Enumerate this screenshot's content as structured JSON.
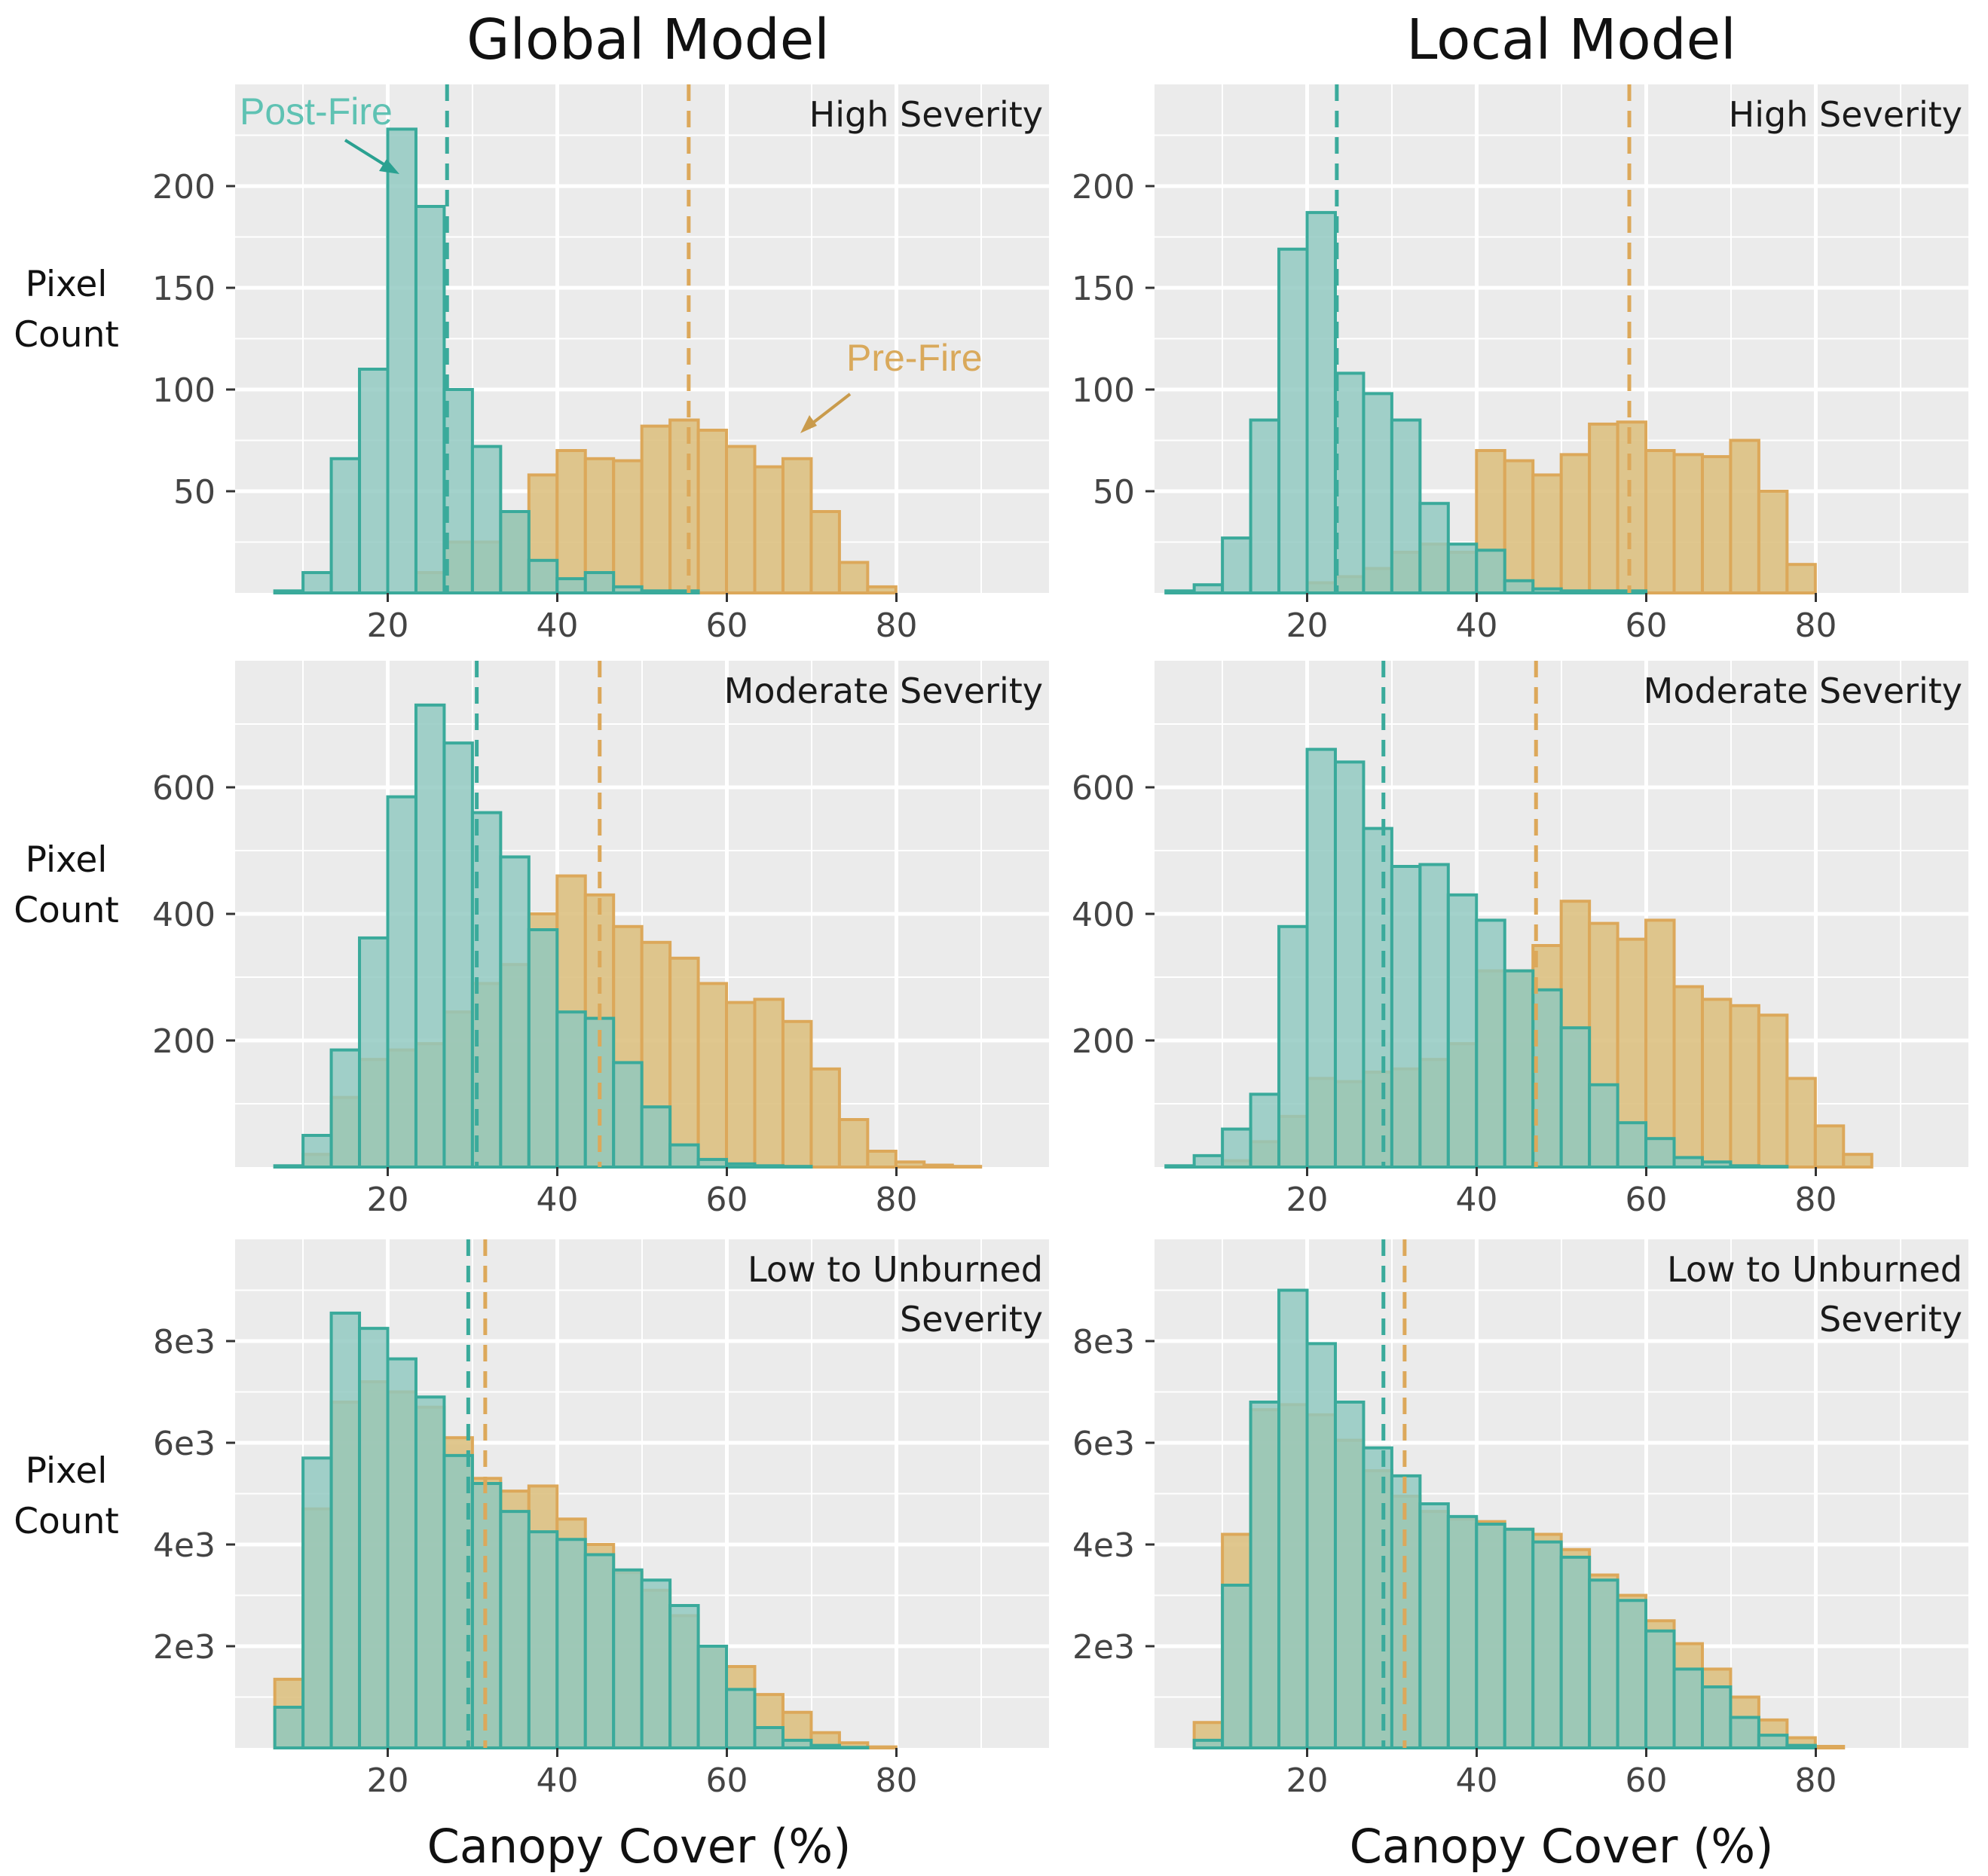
{
  "columns": [
    "Global Model",
    "Local Model"
  ],
  "y_axis_label_lines": [
    "Pixel",
    "Count"
  ],
  "x_axis_label": "Canopy Cover (%)",
  "colors": {
    "post_fire_fill": "#8fc8c0",
    "post_fire_line": "#3aaa9b",
    "pre_fire_fill": "#dcbf7e",
    "pre_fire_line": "#dca85a",
    "panel_bg": "#ebebeb",
    "grid": "#ffffff"
  },
  "annotations": {
    "post_fire": "Post-Fire",
    "pre_fire": "Pre-Fire"
  },
  "chart_data": [
    {
      "type": "histogram",
      "model": "Global Model",
      "panel_title": [
        "High Severity"
      ],
      "xlabel": "Canopy Cover (%)",
      "ylabel": "Pixel Count",
      "x_range": [
        2,
        98
      ],
      "ylim": [
        0,
        250
      ],
      "x_ticks": [
        20,
        40,
        60,
        80
      ],
      "y_ticks": [
        50,
        100,
        150,
        200
      ],
      "y_tick_labels": [
        "50",
        "100",
        "150",
        "200"
      ],
      "bin_width": 3.33,
      "bin_start": 3.35,
      "series": [
        {
          "name": "Post-Fire",
          "mean": 27,
          "values": [
            0,
            1,
            10,
            66,
            110,
            228,
            190,
            100,
            72,
            40,
            16,
            7,
            10,
            3,
            1,
            1,
            0,
            0,
            0,
            0,
            0,
            0,
            0,
            0,
            0,
            0,
            0,
            0
          ]
        },
        {
          "name": "Pre-Fire",
          "mean": 55.5,
          "values": [
            0,
            0,
            0,
            0,
            0,
            0,
            10,
            25,
            25,
            40,
            58,
            70,
            66,
            65,
            82,
            85,
            80,
            72,
            62,
            66,
            40,
            15,
            3,
            0,
            0,
            0,
            0,
            0
          ]
        }
      ]
    },
    {
      "type": "histogram",
      "model": "Local Model",
      "panel_title": [
        "High Severity"
      ],
      "xlabel": "Canopy Cover (%)",
      "ylabel": "Pixel Count",
      "x_range": [
        2,
        98
      ],
      "ylim": [
        0,
        250
      ],
      "x_ticks": [
        20,
        40,
        60,
        80
      ],
      "y_ticks": [
        50,
        100,
        150,
        200
      ],
      "y_tick_labels": [
        "50",
        "100",
        "150",
        "200"
      ],
      "bin_width": 3.33,
      "bin_start": 3.35,
      "series": [
        {
          "name": "Post-Fire",
          "mean": 23.5,
          "values": [
            1,
            4,
            27,
            85,
            169,
            187,
            108,
            98,
            85,
            44,
            24,
            21,
            6,
            2,
            1,
            1,
            1,
            0,
            0,
            0,
            0,
            0,
            0,
            0,
            0,
            0,
            0,
            0
          ]
        },
        {
          "name": "Pre-Fire",
          "mean": 58,
          "values": [
            0,
            0,
            0,
            0,
            0,
            5,
            8,
            12,
            20,
            24,
            20,
            70,
            65,
            58,
            68,
            83,
            84,
            70,
            68,
            67,
            75,
            50,
            14,
            0,
            0,
            0,
            0,
            0
          ]
        }
      ]
    },
    {
      "type": "histogram",
      "model": "Global Model",
      "panel_title": [
        "Moderate Severity"
      ],
      "xlabel": "Canopy Cover (%)",
      "ylabel": "Pixel Count",
      "x_range": [
        2,
        98
      ],
      "ylim": [
        0,
        800
      ],
      "x_ticks": [
        20,
        40,
        60,
        80
      ],
      "y_ticks": [
        200,
        400,
        600
      ],
      "y_tick_labels": [
        "200",
        "400",
        "600"
      ],
      "bin_width": 3.33,
      "bin_start": 3.35,
      "series": [
        {
          "name": "Post-Fire",
          "mean": 30.5,
          "values": [
            0,
            2,
            50,
            185,
            362,
            585,
            730,
            670,
            560,
            490,
            375,
            245,
            235,
            165,
            95,
            35,
            12,
            5,
            2,
            1,
            0,
            0,
            0,
            0,
            0,
            0,
            0,
            0
          ]
        },
        {
          "name": "Pre-Fire",
          "mean": 45,
          "values": [
            0,
            0,
            20,
            110,
            170,
            185,
            195,
            245,
            290,
            320,
            400,
            460,
            430,
            380,
            355,
            330,
            290,
            260,
            265,
            230,
            155,
            75,
            25,
            8,
            3,
            1,
            0,
            0
          ]
        }
      ]
    },
    {
      "type": "histogram",
      "model": "Local Model",
      "panel_title": [
        "Moderate Severity"
      ],
      "xlabel": "Canopy Cover (%)",
      "ylabel": "Pixel Count",
      "x_range": [
        2,
        98
      ],
      "ylim": [
        0,
        800
      ],
      "x_ticks": [
        20,
        40,
        60,
        80
      ],
      "y_ticks": [
        200,
        400,
        600
      ],
      "y_tick_labels": [
        "200",
        "400",
        "600"
      ],
      "bin_width": 3.33,
      "bin_start": 3.35,
      "series": [
        {
          "name": "Post-Fire",
          "mean": 29,
          "values": [
            2,
            18,
            60,
            115,
            380,
            660,
            640,
            535,
            475,
            478,
            430,
            390,
            310,
            280,
            220,
            130,
            70,
            45,
            15,
            8,
            2,
            1,
            0,
            0,
            0,
            0,
            0,
            0
          ]
        },
        {
          "name": "Pre-Fire",
          "mean": 47,
          "values": [
            0,
            0,
            10,
            40,
            80,
            140,
            135,
            150,
            155,
            170,
            195,
            310,
            310,
            350,
            420,
            385,
            360,
            390,
            285,
            265,
            255,
            240,
            140,
            65,
            20,
            0,
            0,
            0
          ]
        }
      ]
    },
    {
      "type": "histogram",
      "model": "Global Model",
      "panel_title": [
        "Low to Unburned",
        "Severity"
      ],
      "xlabel": "Canopy Cover (%)",
      "ylabel": "Pixel Count",
      "x_range": [
        2,
        98
      ],
      "ylim": [
        0,
        10000
      ],
      "x_ticks": [
        20,
        40,
        60,
        80
      ],
      "y_ticks": [
        2000,
        4000,
        6000,
        8000
      ],
      "y_tick_labels": [
        "2e3",
        "4e3",
        "6e3",
        "8e3"
      ],
      "bin_width": 3.33,
      "bin_start": 3.35,
      "series": [
        {
          "name": "Post-Fire",
          "mean": 29.5,
          "values": [
            0,
            800,
            5700,
            8550,
            8250,
            7650,
            6900,
            5750,
            5200,
            4650,
            4250,
            4100,
            3800,
            3500,
            3300,
            2800,
            2000,
            1150,
            400,
            150,
            50,
            10,
            0,
            0,
            0,
            0,
            0,
            0
          ]
        },
        {
          "name": "Pre-Fire",
          "mean": 31.5,
          "values": [
            0,
            1350,
            4700,
            6800,
            7200,
            7000,
            6700,
            6100,
            5300,
            5050,
            5150,
            4500,
            4000,
            3450,
            3100,
            2600,
            2000,
            1600,
            1050,
            700,
            300,
            100,
            20,
            0,
            0,
            0,
            0,
            0
          ]
        }
      ]
    },
    {
      "type": "histogram",
      "model": "Local Model",
      "panel_title": [
        "Low to Unburned",
        "Severity"
      ],
      "xlabel": "Canopy Cover (%)",
      "ylabel": "Pixel Count",
      "x_range": [
        2,
        98
      ],
      "ylim": [
        0,
        10000
      ],
      "x_ticks": [
        20,
        40,
        60,
        80
      ],
      "y_ticks": [
        2000,
        4000,
        6000,
        8000
      ],
      "y_tick_labels": [
        "2e3",
        "4e3",
        "6e3",
        "8e3"
      ],
      "bin_width": 3.33,
      "bin_start": 3.35,
      "series": [
        {
          "name": "Post-Fire",
          "mean": 29,
          "values": [
            0,
            150,
            3200,
            6800,
            9000,
            7950,
            6800,
            5900,
            5350,
            4800,
            4550,
            4400,
            4300,
            4050,
            3750,
            3300,
            2900,
            2300,
            1550,
            1200,
            600,
            250,
            50,
            0,
            0,
            0,
            0,
            0
          ]
        },
        {
          "name": "Pre-Fire",
          "mean": 31.5,
          "values": [
            0,
            500,
            4200,
            6650,
            6750,
            6550,
            6050,
            5450,
            4950,
            4650,
            4500,
            4450,
            4300,
            4200,
            3900,
            3400,
            3000,
            2500,
            2050,
            1550,
            1000,
            550,
            200,
            30,
            0,
            0,
            0,
            0
          ]
        }
      ]
    }
  ]
}
